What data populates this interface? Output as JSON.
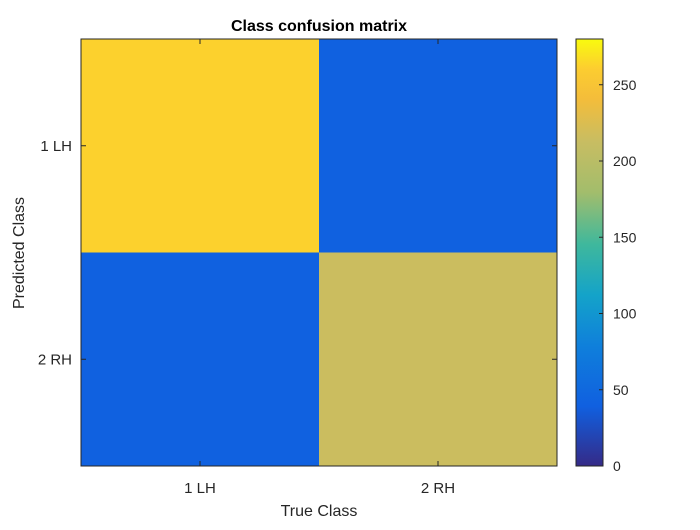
{
  "chart_data": {
    "type": "heatmap",
    "title": "Class confusion matrix",
    "xlabel": "True Class",
    "ylabel": "Predicted Class",
    "x_categories": [
      "1 LH",
      "2 RH"
    ],
    "y_categories": [
      "1 LH",
      "2 RH"
    ],
    "values": [
      [
        262,
        40
      ],
      [
        40,
        215
      ]
    ],
    "colorbar": {
      "colormap": "parula",
      "range": [
        0,
        280
      ],
      "ticks": [
        0,
        50,
        100,
        150,
        200,
        250
      ]
    },
    "grid": false,
    "colorbar_position": "right"
  }
}
